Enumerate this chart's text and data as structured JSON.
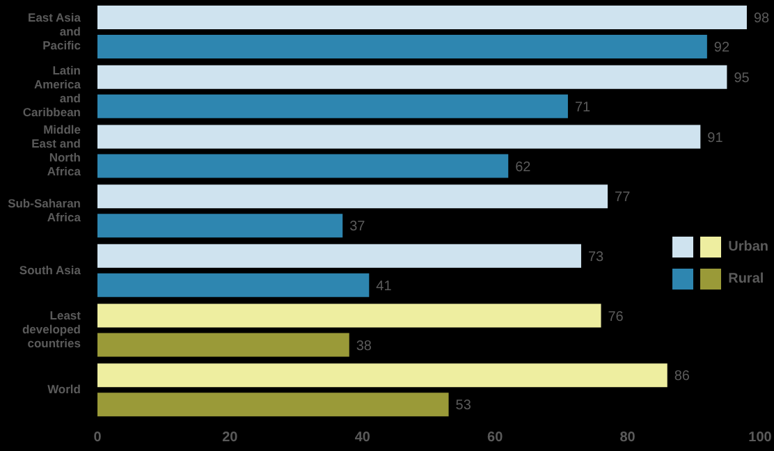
{
  "chart_data": {
    "type": "bar",
    "orientation": "horizontal",
    "categories": [
      "East Asia and Pacific",
      "Latin America and Caribbean",
      "Middle East and North Africa",
      "Sub-Saharan Africa",
      "South Asia",
      "Least developed countries",
      "World"
    ],
    "series": [
      {
        "name": "Urban",
        "color": "#cfe3ef",
        "colors": [
          "#cfe3ef",
          "#cfe3ef",
          "#cfe3ef",
          "#cfe3ef",
          "#cfe3ef",
          "#eeeea0",
          "#eeeea0"
        ],
        "values": [
          98,
          95,
          91,
          77,
          73,
          76,
          86
        ]
      },
      {
        "name": "Rural",
        "color": "#2e86b0",
        "colors": [
          "#2e86b0",
          "#2e86b0",
          "#2e86b0",
          "#2e86b0",
          "#2e86b0",
          "#9a9a38",
          "#9a9a38"
        ],
        "values": [
          92,
          71,
          62,
          37,
          41,
          38,
          53
        ]
      }
    ],
    "xlim": [
      0,
      100
    ],
    "xticks": [
      0,
      20,
      40,
      60,
      80,
      100
    ],
    "grid": false,
    "legend": "right",
    "data_labels": true
  }
}
